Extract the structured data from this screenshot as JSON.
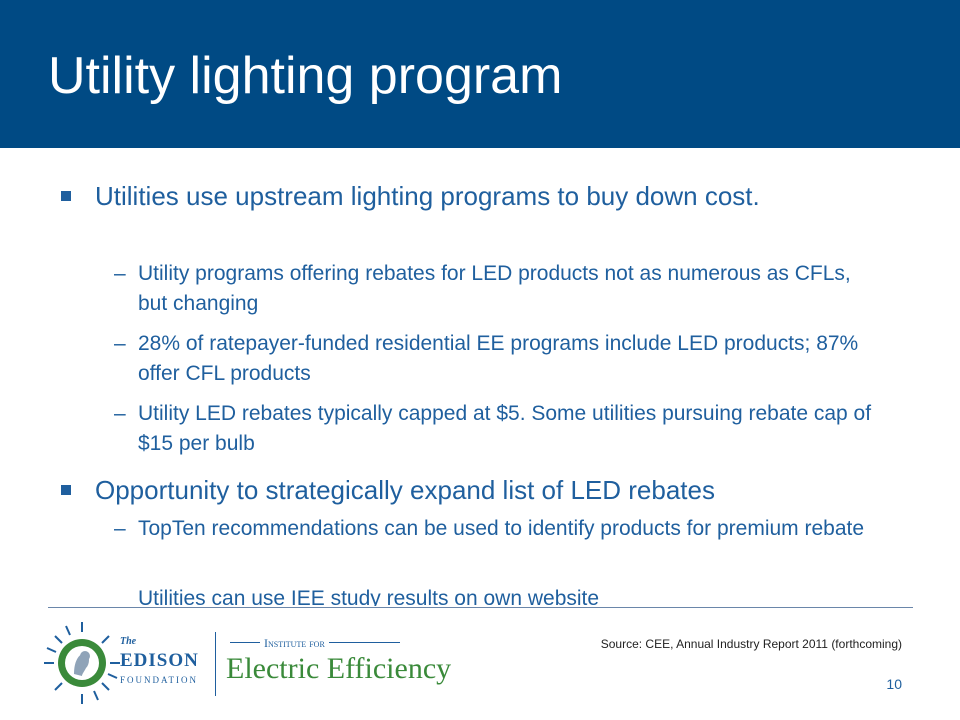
{
  "title": "Utility lighting program",
  "bullets": [
    {
      "text": "Utilities use upstream lighting programs to buy down cost.",
      "sub": [
        "Utility programs offering rebates for LED products not as numerous as CFLs, but changing",
        "28% of ratepayer-funded residential EE programs include LED products; 87% offer CFL products",
        "Utility LED rebates typically capped at $5.  Some utilities pursuing rebate cap of $15 per bulb"
      ]
    },
    {
      "text": "Opportunity to strategically expand list of LED rebates",
      "sub": [
        "TopTen recommendations can be used to identify products for premium rebate",
        "Utilities can use IEE study results on own website"
      ]
    }
  ],
  "source": "Source: CEE, Annual Industry Report 2011 (forthcoming)",
  "page_number": "10",
  "logo": {
    "edison_the": "The",
    "edison_name": "EDISON",
    "edison_foundation": "FOUNDATION",
    "iee_top": "Institute for",
    "iee_name": "Electric Efficiency"
  },
  "colors": {
    "header_bg": "#004a84",
    "title_text": "#ffffff",
    "body_text": "#1f5f9e",
    "logo_green": "#3a8a3a"
  }
}
